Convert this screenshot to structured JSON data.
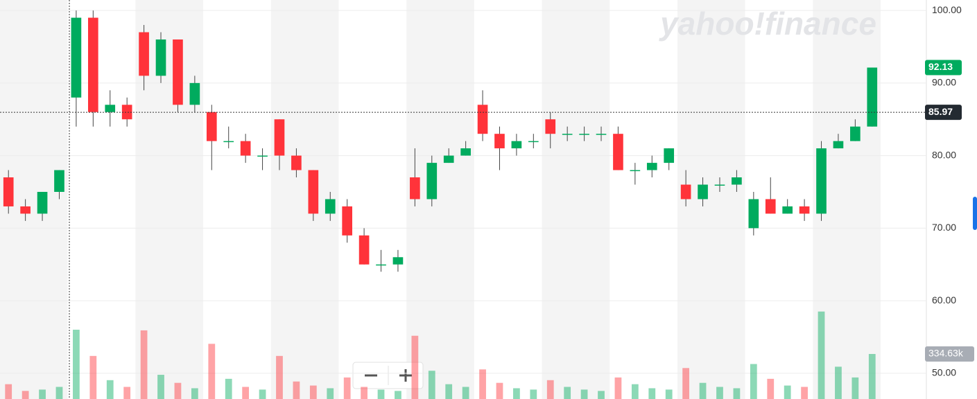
{
  "chart_data": {
    "type": "candlestick",
    "watermark": "yahoo!finance",
    "up_color": "#00ab5e",
    "down_color": "#ff333a",
    "ylim": [
      46.46,
      101.44
    ],
    "yticks": [
      {
        "value": 50,
        "label": "50.00"
      },
      {
        "value": 60,
        "label": "60.00"
      },
      {
        "value": 70,
        "label": "70.00"
      },
      {
        "value": 80,
        "label": "80.00"
      },
      {
        "value": 90,
        "label": "90.00"
      },
      {
        "value": 100,
        "label": "100.00"
      }
    ],
    "grid": true,
    "open": [
      77,
      73,
      72,
      75,
      88,
      99,
      86,
      87,
      97,
      91,
      96,
      87,
      86,
      82,
      82,
      80,
      85,
      80,
      78,
      72,
      73,
      69,
      65,
      65,
      77,
      74,
      79,
      80,
      87,
      83,
      81,
      82,
      85,
      83,
      83,
      83,
      83,
      78,
      78,
      79,
      76,
      74,
      76,
      76,
      70,
      74,
      72,
      73,
      72,
      81,
      82,
      84
    ],
    "high": [
      78,
      74,
      75,
      78,
      100,
      100,
      89,
      88,
      98,
      97,
      96,
      91,
      87,
      84,
      83,
      81,
      85,
      81,
      78,
      75,
      74,
      70,
      67,
      67,
      81,
      80,
      81,
      82,
      89,
      84,
      83,
      83,
      86,
      84,
      84,
      84,
      84,
      79,
      80,
      81,
      78,
      77,
      77,
      78,
      75,
      77,
      74,
      74,
      82,
      83,
      85,
      92.13
    ],
    "low": [
      72,
      71,
      71,
      74,
      84,
      84,
      84,
      84,
      89,
      90,
      86,
      86,
      78,
      81,
      79,
      78,
      78,
      77,
      71,
      71,
      68,
      65,
      64,
      64,
      73,
      73,
      79,
      80,
      82,
      78,
      80,
      81,
      81,
      82,
      82,
      82,
      78,
      76,
      77,
      78,
      73,
      73,
      75,
      75,
      69,
      72,
      72,
      71,
      71,
      81,
      82,
      84
    ],
    "close": [
      73,
      72,
      75,
      78,
      99,
      86,
      87,
      85,
      91,
      96,
      87,
      90,
      82,
      82,
      80,
      80,
      80,
      78,
      72,
      74,
      69,
      65,
      65,
      66,
      74,
      79,
      80,
      81,
      83,
      81,
      82,
      82,
      83,
      83,
      83,
      83,
      78,
      78,
      79,
      81,
      74,
      76,
      76,
      77,
      74,
      72,
      73,
      72,
      81,
      82,
      84,
      92.13
    ],
    "volume": [
      110,
      60,
      70,
      90,
      515,
      320,
      140,
      90,
      510,
      180,
      120,
      80,
      410,
      150,
      90,
      70,
      320,
      130,
      100,
      80,
      160,
      90,
      70,
      60,
      470,
      210,
      110,
      90,
      220,
      120,
      80,
      70,
      140,
      90,
      70,
      60,
      160,
      110,
      80,
      70,
      230,
      120,
      90,
      80,
      260,
      150,
      100,
      90,
      650,
      240,
      160,
      334.63
    ],
    "volume_lim": [
      0,
      2965
    ],
    "last_price": 92.13,
    "crosshair_price": 85.97,
    "volume_tag": {
      "value": 334.63,
      "label": "334.63k"
    }
  }
}
